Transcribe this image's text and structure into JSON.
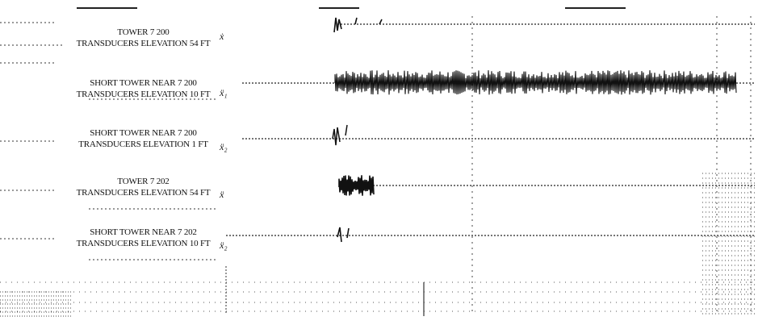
{
  "chart_data": {
    "type": "line",
    "traces": [
      {
        "line1": "TOWER 7 200",
        "line2": "TRANSDUCERS ELEVATION 54 FT",
        "symbol": "ẋ"
      },
      {
        "line1": "SHORT TOWER NEAR 7 200",
        "line2": "TRANSDUCERS ELEVATION 10 FT",
        "symbol": "ẍ₁"
      },
      {
        "line1": "SHORT TOWER NEAR 7 200",
        "line2": "TRANSDUCERS ELEVATION 1 FT",
        "symbol": "ẍ₂"
      },
      {
        "line1": "TOWER 7 202",
        "line2": "TRANSDUCERS ELEVATION 54 FT",
        "symbol": "ẍ"
      },
      {
        "line1": "SHORT TOWER NEAR 7 202",
        "line2": "TRANSDUCERS ELEVATION 10 FT",
        "symbol": "ẍ₂"
      }
    ],
    "grid": "dotted",
    "legend": "left"
  }
}
